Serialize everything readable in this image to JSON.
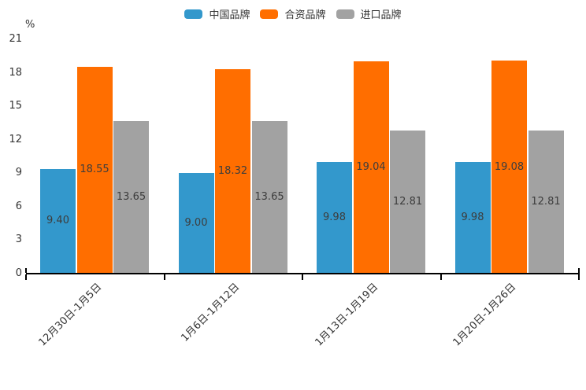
{
  "chart_data": {
    "type": "bar",
    "title": "",
    "unit_label": "%",
    "categories": [
      "12月30日-1月5日",
      "1月6日-1月12日",
      "1月13日-1月19日",
      "1月20日-1月26日"
    ],
    "series": [
      {
        "name": "中国品牌",
        "color": "#3398CC",
        "values": [
          9.4,
          9.0,
          9.98,
          9.98
        ]
      },
      {
        "name": "合资品牌",
        "color": "#FF6E00",
        "values": [
          18.55,
          18.32,
          19.04,
          19.08
        ]
      },
      {
        "name": "进口品牌",
        "color": "#A2A2A2",
        "values": [
          13.65,
          13.65,
          12.81,
          12.81
        ]
      }
    ],
    "value_label_format": "2-decimals",
    "y_ticks": [
      0,
      3,
      6,
      9,
      12,
      15,
      18,
      21
    ],
    "ylim": [
      0,
      21
    ],
    "xlabel": "",
    "ylabel": "",
    "legend_position": "top-center",
    "grid": false,
    "axis_color": "#000000",
    "tick_text_color": "#333333",
    "value_text_color": "#3d3d3d",
    "background_color": "#ffffff"
  }
}
